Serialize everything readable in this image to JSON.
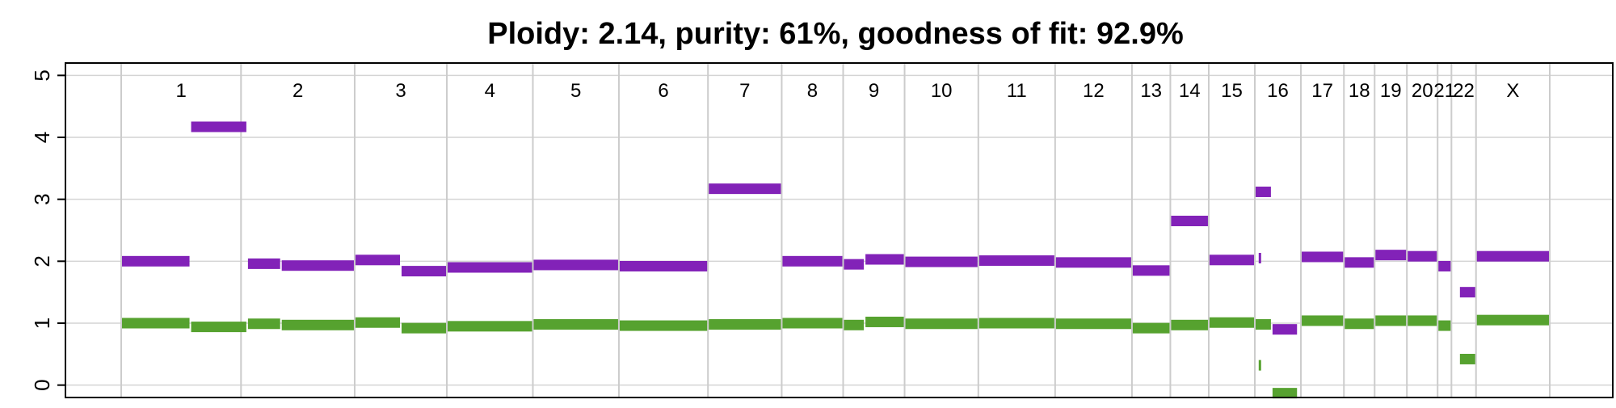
{
  "chart_data": {
    "type": "segment",
    "title": "Ploidy: 2.14, purity: 61%, goodness of fit: 92.9%",
    "xlabel": "",
    "ylabel": "",
    "ylim": [
      -0.2,
      5.2
    ],
    "y_ticks": [
      "0",
      "1",
      "2",
      "3",
      "4",
      "5"
    ],
    "grid": true,
    "chromosomes": [
      {
        "label": "1",
        "start": 0.0,
        "end": 3.9
      },
      {
        "label": "2",
        "start": 3.9,
        "end": 7.6
      },
      {
        "label": "3",
        "start": 7.6,
        "end": 10.6
      },
      {
        "label": "4",
        "start": 10.6,
        "end": 13.4
      },
      {
        "label": "5",
        "start": 13.4,
        "end": 16.2
      },
      {
        "label": "6",
        "start": 16.2,
        "end": 19.1
      },
      {
        "label": "7",
        "start": 19.1,
        "end": 21.5
      },
      {
        "label": "8",
        "start": 21.5,
        "end": 23.5
      },
      {
        "label": "9",
        "start": 23.5,
        "end": 25.5
      },
      {
        "label": "10",
        "start": 25.5,
        "end": 27.9
      },
      {
        "label": "11",
        "start": 27.9,
        "end": 30.4
      },
      {
        "label": "12",
        "start": 30.4,
        "end": 32.9
      },
      {
        "label": "13",
        "start": 32.9,
        "end": 34.15
      },
      {
        "label": "14",
        "start": 34.15,
        "end": 35.4
      },
      {
        "label": "15",
        "start": 35.4,
        "end": 36.9
      },
      {
        "label": "16",
        "start": 36.9,
        "end": 38.4
      },
      {
        "label": "17",
        "start": 38.4,
        "end": 39.8
      },
      {
        "label": "18",
        "start": 39.8,
        "end": 40.8
      },
      {
        "label": "19",
        "start": 40.8,
        "end": 41.85
      },
      {
        "label": "20",
        "start": 41.85,
        "end": 42.85
      },
      {
        "label": "21",
        "start": 42.85,
        "end": 43.3
      },
      {
        "label": "22",
        "start": 43.3,
        "end": 44.1
      },
      {
        "label": "X",
        "start": 44.1,
        "end": 46.5
      }
    ],
    "series": [
      {
        "name": "",
        "color": "#8222b8",
        "segments": [
          {
            "start": 0.0,
            "end": 2.25,
            "value": 2.0
          },
          {
            "start": 2.25,
            "end": 4.1,
            "value": 4.17
          },
          {
            "start": 4.1,
            "end": 5.2,
            "value": 1.96
          },
          {
            "start": 5.2,
            "end": 7.6,
            "value": 1.93
          },
          {
            "start": 7.6,
            "end": 9.1,
            "value": 2.02
          },
          {
            "start": 9.1,
            "end": 10.6,
            "value": 1.84
          },
          {
            "start": 10.6,
            "end": 13.4,
            "value": 1.9
          },
          {
            "start": 13.4,
            "end": 16.2,
            "value": 1.94
          },
          {
            "start": 16.2,
            "end": 19.1,
            "value": 1.92
          },
          {
            "start": 19.1,
            "end": 21.5,
            "value": 3.17
          },
          {
            "start": 21.5,
            "end": 23.5,
            "value": 2.0
          },
          {
            "start": 23.5,
            "end": 24.2,
            "value": 1.95
          },
          {
            "start": 24.2,
            "end": 25.5,
            "value": 2.03
          },
          {
            "start": 25.5,
            "end": 27.9,
            "value": 1.99
          },
          {
            "start": 27.9,
            "end": 30.4,
            "value": 2.01
          },
          {
            "start": 30.4,
            "end": 32.9,
            "value": 1.98
          },
          {
            "start": 32.9,
            "end": 34.15,
            "value": 1.85
          },
          {
            "start": 34.15,
            "end": 35.4,
            "value": 2.65
          },
          {
            "start": 35.4,
            "end": 36.9,
            "value": 2.02
          },
          {
            "start": 36.9,
            "end": 37.45,
            "value": 3.12
          },
          {
            "start": 37.0,
            "end": 37.1,
            "value": 2.05
          },
          {
            "start": 37.45,
            "end": 38.3,
            "value": 0.9
          },
          {
            "start": 38.4,
            "end": 39.8,
            "value": 2.07
          },
          {
            "start": 39.8,
            "end": 40.8,
            "value": 1.98
          },
          {
            "start": 40.8,
            "end": 41.85,
            "value": 2.1
          },
          {
            "start": 41.85,
            "end": 42.85,
            "value": 2.08
          },
          {
            "start": 42.85,
            "end": 43.3,
            "value": 1.92
          },
          {
            "start": 43.55,
            "end": 44.1,
            "value": 1.5
          },
          {
            "start": 44.1,
            "end": 46.5,
            "value": 2.08
          }
        ]
      },
      {
        "name": "",
        "color": "#56a22f",
        "segments": [
          {
            "start": 0.0,
            "end": 2.25,
            "value": 1.0
          },
          {
            "start": 2.25,
            "end": 4.1,
            "value": 0.94
          },
          {
            "start": 4.1,
            "end": 5.2,
            "value": 0.99
          },
          {
            "start": 5.2,
            "end": 7.6,
            "value": 0.97
          },
          {
            "start": 7.6,
            "end": 9.1,
            "value": 1.01
          },
          {
            "start": 9.1,
            "end": 10.6,
            "value": 0.92
          },
          {
            "start": 10.6,
            "end": 13.4,
            "value": 0.95
          },
          {
            "start": 13.4,
            "end": 16.2,
            "value": 0.98
          },
          {
            "start": 16.2,
            "end": 19.1,
            "value": 0.96
          },
          {
            "start": 19.1,
            "end": 21.5,
            "value": 0.98
          },
          {
            "start": 21.5,
            "end": 23.5,
            "value": 1.0
          },
          {
            "start": 23.5,
            "end": 24.2,
            "value": 0.97
          },
          {
            "start": 24.2,
            "end": 25.5,
            "value": 1.02
          },
          {
            "start": 25.5,
            "end": 27.9,
            "value": 0.99
          },
          {
            "start": 27.9,
            "end": 30.4,
            "value": 1.0
          },
          {
            "start": 30.4,
            "end": 32.9,
            "value": 0.99
          },
          {
            "start": 32.9,
            "end": 34.15,
            "value": 0.92
          },
          {
            "start": 34.15,
            "end": 35.4,
            "value": 0.97
          },
          {
            "start": 35.4,
            "end": 36.9,
            "value": 1.01
          },
          {
            "start": 36.9,
            "end": 37.45,
            "value": 0.98
          },
          {
            "start": 37.0,
            "end": 37.1,
            "value": 0.32
          },
          {
            "start": 37.45,
            "end": 38.3,
            "value": -0.13
          },
          {
            "start": 38.4,
            "end": 39.8,
            "value": 1.04
          },
          {
            "start": 39.8,
            "end": 40.8,
            "value": 0.99
          },
          {
            "start": 40.8,
            "end": 41.85,
            "value": 1.04
          },
          {
            "start": 41.85,
            "end": 42.85,
            "value": 1.04
          },
          {
            "start": 42.85,
            "end": 43.3,
            "value": 0.96
          },
          {
            "start": 43.55,
            "end": 44.1,
            "value": 0.42
          },
          {
            "start": 44.1,
            "end": 46.5,
            "value": 1.05
          }
        ]
      }
    ]
  }
}
